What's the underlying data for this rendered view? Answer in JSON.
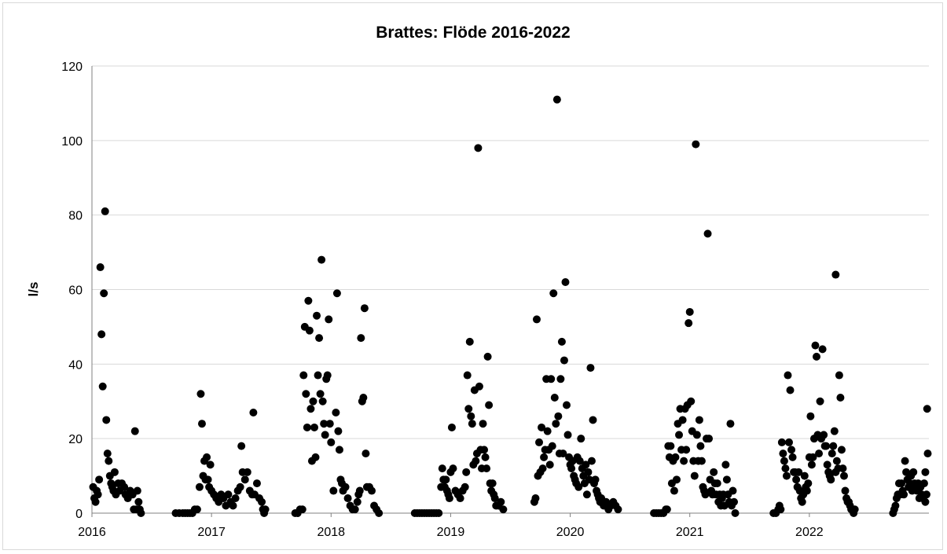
{
  "chart_data": {
    "type": "scatter",
    "title": "Brattes: Flöde 2016-2022",
    "xlabel": "",
    "ylabel": "l/s",
    "xlim": [
      2016.0,
      2023.0
    ],
    "ylim": [
      0,
      120
    ],
    "yticks": [
      0,
      20,
      40,
      60,
      80,
      100,
      120
    ],
    "xticks": [
      "2016",
      "2017",
      "2018",
      "2019",
      "2020",
      "2021",
      "2022"
    ],
    "grid": "horizontal",
    "legend": "none",
    "marker_color": "#000000",
    "points": [
      [
        2016.01,
        7
      ],
      [
        2016.02,
        4
      ],
      [
        2016.03,
        3
      ],
      [
        2016.04,
        6
      ],
      [
        2016.05,
        5
      ],
      [
        2016.06,
        9
      ],
      [
        2016.07,
        66
      ],
      [
        2016.08,
        48
      ],
      [
        2016.09,
        34
      ],
      [
        2016.1,
        59
      ],
      [
        2016.11,
        81
      ],
      [
        2016.12,
        25
      ],
      [
        2016.13,
        16
      ],
      [
        2016.14,
        14
      ],
      [
        2016.15,
        10
      ],
      [
        2016.16,
        8
      ],
      [
        2016.17,
        7
      ],
      [
        2016.18,
        6
      ],
      [
        2016.19,
        11
      ],
      [
        2016.2,
        5
      ],
      [
        2016.22,
        8
      ],
      [
        2016.23,
        6
      ],
      [
        2016.25,
        8
      ],
      [
        2016.27,
        7
      ],
      [
        2016.28,
        5
      ],
      [
        2016.3,
        4
      ],
      [
        2016.32,
        6
      ],
      [
        2016.34,
        5
      ],
      [
        2016.35,
        1
      ],
      [
        2016.36,
        22
      ],
      [
        2016.37,
        1
      ],
      [
        2016.38,
        6
      ],
      [
        2016.39,
        3
      ],
      [
        2016.4,
        1
      ],
      [
        2016.41,
        0
      ],
      [
        2016.7,
        0
      ],
      [
        2016.73,
        0
      ],
      [
        2016.76,
        0
      ],
      [
        2016.78,
        0
      ],
      [
        2016.8,
        0
      ],
      [
        2016.82,
        0
      ],
      [
        2016.84,
        0
      ],
      [
        2016.86,
        1
      ],
      [
        2016.88,
        1
      ],
      [
        2016.9,
        7
      ],
      [
        2016.91,
        32
      ],
      [
        2016.92,
        24
      ],
      [
        2016.93,
        10
      ],
      [
        2016.94,
        14
      ],
      [
        2016.95,
        9
      ],
      [
        2016.96,
        15
      ],
      [
        2016.97,
        9
      ],
      [
        2016.98,
        7
      ],
      [
        2016.99,
        13
      ],
      [
        2017.0,
        6
      ],
      [
        2017.02,
        5
      ],
      [
        2017.04,
        4
      ],
      [
        2017.06,
        3
      ],
      [
        2017.08,
        5
      ],
      [
        2017.1,
        4
      ],
      [
        2017.12,
        2
      ],
      [
        2017.14,
        5
      ],
      [
        2017.16,
        3
      ],
      [
        2017.18,
        2
      ],
      [
        2017.2,
        4
      ],
      [
        2017.22,
        6
      ],
      [
        2017.24,
        7
      ],
      [
        2017.25,
        18
      ],
      [
        2017.26,
        11
      ],
      [
        2017.28,
        9
      ],
      [
        2017.3,
        11
      ],
      [
        2017.32,
        6
      ],
      [
        2017.34,
        5
      ],
      [
        2017.35,
        27
      ],
      [
        2017.36,
        5
      ],
      [
        2017.38,
        8
      ],
      [
        2017.4,
        4
      ],
      [
        2017.42,
        3
      ],
      [
        2017.43,
        1
      ],
      [
        2017.44,
        0
      ],
      [
        2017.45,
        1
      ],
      [
        2017.7,
        0
      ],
      [
        2017.72,
        0
      ],
      [
        2017.74,
        1
      ],
      [
        2017.76,
        1
      ],
      [
        2017.77,
        37
      ],
      [
        2017.78,
        50
      ],
      [
        2017.79,
        32
      ],
      [
        2017.8,
        23
      ],
      [
        2017.81,
        57
      ],
      [
        2017.82,
        49
      ],
      [
        2017.83,
        28
      ],
      [
        2017.84,
        14
      ],
      [
        2017.85,
        30
      ],
      [
        2017.86,
        23
      ],
      [
        2017.87,
        15
      ],
      [
        2017.88,
        53
      ],
      [
        2017.89,
        37
      ],
      [
        2017.9,
        47
      ],
      [
        2017.91,
        32
      ],
      [
        2017.92,
        68
      ],
      [
        2017.93,
        30
      ],
      [
        2017.94,
        24
      ],
      [
        2017.95,
        21
      ],
      [
        2017.96,
        36
      ],
      [
        2017.97,
        37
      ],
      [
        2017.98,
        52
      ],
      [
        2017.99,
        24
      ],
      [
        2018.0,
        19
      ],
      [
        2018.02,
        6
      ],
      [
        2018.04,
        27
      ],
      [
        2018.05,
        59
      ],
      [
        2018.06,
        22
      ],
      [
        2018.07,
        17
      ],
      [
        2018.08,
        9
      ],
      [
        2018.09,
        8
      ],
      [
        2018.1,
        6
      ],
      [
        2018.12,
        7
      ],
      [
        2018.14,
        4
      ],
      [
        2018.16,
        2
      ],
      [
        2018.18,
        1
      ],
      [
        2018.2,
        1
      ],
      [
        2018.22,
        3
      ],
      [
        2018.23,
        5
      ],
      [
        2018.24,
        6
      ],
      [
        2018.25,
        47
      ],
      [
        2018.26,
        30
      ],
      [
        2018.27,
        31
      ],
      [
        2018.28,
        55
      ],
      [
        2018.29,
        16
      ],
      [
        2018.3,
        7
      ],
      [
        2018.32,
        7
      ],
      [
        2018.34,
        6
      ],
      [
        2018.36,
        2
      ],
      [
        2018.38,
        1
      ],
      [
        2018.4,
        0
      ],
      [
        2018.7,
        0
      ],
      [
        2018.72,
        0
      ],
      [
        2018.74,
        0
      ],
      [
        2018.76,
        0
      ],
      [
        2018.78,
        0
      ],
      [
        2018.8,
        0
      ],
      [
        2018.82,
        0
      ],
      [
        2018.84,
        0
      ],
      [
        2018.86,
        0
      ],
      [
        2018.88,
        0
      ],
      [
        2018.9,
        0
      ],
      [
        2018.92,
        7
      ],
      [
        2018.93,
        12
      ],
      [
        2018.94,
        9
      ],
      [
        2018.95,
        7
      ],
      [
        2018.96,
        9
      ],
      [
        2018.97,
        6
      ],
      [
        2018.98,
        5
      ],
      [
        2018.99,
        4
      ],
      [
        2019.0,
        11
      ],
      [
        2019.01,
        23
      ],
      [
        2019.02,
        12
      ],
      [
        2019.04,
        6
      ],
      [
        2019.06,
        5
      ],
      [
        2019.08,
        4
      ],
      [
        2019.1,
        6
      ],
      [
        2019.12,
        7
      ],
      [
        2019.13,
        11
      ],
      [
        2019.14,
        37
      ],
      [
        2019.15,
        28
      ],
      [
        2019.16,
        46
      ],
      [
        2019.17,
        26
      ],
      [
        2019.18,
        24
      ],
      [
        2019.19,
        13
      ],
      [
        2019.2,
        33
      ],
      [
        2019.21,
        14
      ],
      [
        2019.22,
        16
      ],
      [
        2019.23,
        98
      ],
      [
        2019.24,
        34
      ],
      [
        2019.25,
        17
      ],
      [
        2019.26,
        12
      ],
      [
        2019.27,
        24
      ],
      [
        2019.28,
        17
      ],
      [
        2019.29,
        15
      ],
      [
        2019.3,
        12
      ],
      [
        2019.31,
        42
      ],
      [
        2019.32,
        29
      ],
      [
        2019.33,
        8
      ],
      [
        2019.34,
        6
      ],
      [
        2019.35,
        8
      ],
      [
        2019.36,
        5
      ],
      [
        2019.37,
        4
      ],
      [
        2019.38,
        2
      ],
      [
        2019.4,
        2
      ],
      [
        2019.42,
        3
      ],
      [
        2019.44,
        1
      ],
      [
        2019.7,
        3
      ],
      [
        2019.71,
        4
      ],
      [
        2019.72,
        52
      ],
      [
        2019.73,
        10
      ],
      [
        2019.74,
        19
      ],
      [
        2019.75,
        11
      ],
      [
        2019.76,
        23
      ],
      [
        2019.77,
        12
      ],
      [
        2019.78,
        15
      ],
      [
        2019.79,
        17
      ],
      [
        2019.8,
        36
      ],
      [
        2019.81,
        22
      ],
      [
        2019.82,
        17
      ],
      [
        2019.83,
        13
      ],
      [
        2019.84,
        36
      ],
      [
        2019.85,
        18
      ],
      [
        2019.86,
        59
      ],
      [
        2019.87,
        31
      ],
      [
        2019.88,
        24
      ],
      [
        2019.89,
        111
      ],
      [
        2019.9,
        26
      ],
      [
        2019.91,
        16
      ],
      [
        2019.92,
        36
      ],
      [
        2019.93,
        46
      ],
      [
        2019.94,
        16
      ],
      [
        2019.95,
        41
      ],
      [
        2019.96,
        62
      ],
      [
        2019.97,
        29
      ],
      [
        2019.98,
        21
      ],
      [
        2019.99,
        15
      ],
      [
        2020.0,
        13
      ],
      [
        2020.01,
        12
      ],
      [
        2020.02,
        14
      ],
      [
        2020.03,
        10
      ],
      [
        2020.04,
        9
      ],
      [
        2020.05,
        8
      ],
      [
        2020.06,
        15
      ],
      [
        2020.07,
        7
      ],
      [
        2020.08,
        14
      ],
      [
        2020.09,
        20
      ],
      [
        2020.1,
        12
      ],
      [
        2020.11,
        10
      ],
      [
        2020.12,
        8
      ],
      [
        2020.13,
        13
      ],
      [
        2020.14,
        5
      ],
      [
        2020.15,
        11
      ],
      [
        2020.16,
        9
      ],
      [
        2020.17,
        39
      ],
      [
        2020.18,
        14
      ],
      [
        2020.19,
        25
      ],
      [
        2020.2,
        8
      ],
      [
        2020.21,
        9
      ],
      [
        2020.22,
        6
      ],
      [
        2020.23,
        5
      ],
      [
        2020.24,
        4
      ],
      [
        2020.25,
        3
      ],
      [
        2020.26,
        4
      ],
      [
        2020.27,
        3
      ],
      [
        2020.28,
        2
      ],
      [
        2020.3,
        3
      ],
      [
        2020.32,
        1
      ],
      [
        2020.34,
        2
      ],
      [
        2020.36,
        3
      ],
      [
        2020.38,
        2
      ],
      [
        2020.4,
        1
      ],
      [
        2020.7,
        0
      ],
      [
        2020.72,
        0
      ],
      [
        2020.74,
        0
      ],
      [
        2020.76,
        0
      ],
      [
        2020.78,
        0
      ],
      [
        2020.8,
        1
      ],
      [
        2020.81,
        1
      ],
      [
        2020.82,
        18
      ],
      [
        2020.83,
        15
      ],
      [
        2020.84,
        18
      ],
      [
        2020.85,
        8
      ],
      [
        2020.86,
        14
      ],
      [
        2020.87,
        6
      ],
      [
        2020.88,
        15
      ],
      [
        2020.89,
        9
      ],
      [
        2020.9,
        24
      ],
      [
        2020.91,
        21
      ],
      [
        2020.92,
        28
      ],
      [
        2020.93,
        17
      ],
      [
        2020.94,
        25
      ],
      [
        2020.95,
        14
      ],
      [
        2020.96,
        28
      ],
      [
        2020.97,
        17
      ],
      [
        2020.98,
        29
      ],
      [
        2020.99,
        51
      ],
      [
        2021.0,
        54
      ],
      [
        2021.01,
        30
      ],
      [
        2021.02,
        22
      ],
      [
        2021.03,
        14
      ],
      [
        2021.04,
        10
      ],
      [
        2021.05,
        99
      ],
      [
        2021.06,
        21
      ],
      [
        2021.07,
        14
      ],
      [
        2021.08,
        25
      ],
      [
        2021.09,
        18
      ],
      [
        2021.1,
        14
      ],
      [
        2021.11,
        7
      ],
      [
        2021.12,
        6
      ],
      [
        2021.13,
        5
      ],
      [
        2021.14,
        20
      ],
      [
        2021.15,
        75
      ],
      [
        2021.16,
        20
      ],
      [
        2021.17,
        9
      ],
      [
        2021.18,
        6
      ],
      [
        2021.19,
        5
      ],
      [
        2021.2,
        11
      ],
      [
        2021.21,
        8
      ],
      [
        2021.22,
        5
      ],
      [
        2021.23,
        8
      ],
      [
        2021.24,
        3
      ],
      [
        2021.25,
        5
      ],
      [
        2021.26,
        2
      ],
      [
        2021.27,
        4
      ],
      [
        2021.28,
        5
      ],
      [
        2021.29,
        2
      ],
      [
        2021.3,
        13
      ],
      [
        2021.31,
        9
      ],
      [
        2021.32,
        5
      ],
      [
        2021.33,
        3
      ],
      [
        2021.34,
        24
      ],
      [
        2021.35,
        2
      ],
      [
        2021.36,
        6
      ],
      [
        2021.37,
        3
      ],
      [
        2021.38,
        0
      ],
      [
        2021.7,
        0
      ],
      [
        2021.72,
        0
      ],
      [
        2021.74,
        1
      ],
      [
        2021.75,
        2
      ],
      [
        2021.76,
        1
      ],
      [
        2021.77,
        19
      ],
      [
        2021.78,
        16
      ],
      [
        2021.79,
        14
      ],
      [
        2021.8,
        12
      ],
      [
        2021.81,
        10
      ],
      [
        2021.82,
        37
      ],
      [
        2021.83,
        19
      ],
      [
        2021.84,
        33
      ],
      [
        2021.85,
        17
      ],
      [
        2021.86,
        15
      ],
      [
        2021.87,
        11
      ],
      [
        2021.88,
        11
      ],
      [
        2021.89,
        9
      ],
      [
        2021.9,
        7
      ],
      [
        2021.91,
        11
      ],
      [
        2021.92,
        6
      ],
      [
        2021.93,
        4
      ],
      [
        2021.94,
        3
      ],
      [
        2021.95,
        5
      ],
      [
        2021.96,
        10
      ],
      [
        2021.97,
        7
      ],
      [
        2021.98,
        6
      ],
      [
        2021.99,
        8
      ],
      [
        2022.0,
        15
      ],
      [
        2022.01,
        26
      ],
      [
        2022.02,
        13
      ],
      [
        2022.03,
        15
      ],
      [
        2022.04,
        20
      ],
      [
        2022.05,
        45
      ],
      [
        2022.06,
        42
      ],
      [
        2022.07,
        21
      ],
      [
        2022.08,
        16
      ],
      [
        2022.09,
        30
      ],
      [
        2022.1,
        20
      ],
      [
        2022.11,
        44
      ],
      [
        2022.12,
        21
      ],
      [
        2022.13,
        18
      ],
      [
        2022.14,
        18
      ],
      [
        2022.15,
        13
      ],
      [
        2022.16,
        11
      ],
      [
        2022.17,
        10
      ],
      [
        2022.18,
        9
      ],
      [
        2022.19,
        16
      ],
      [
        2022.2,
        18
      ],
      [
        2022.21,
        22
      ],
      [
        2022.22,
        11
      ],
      [
        2022.23,
        14
      ],
      [
        2022.24,
        12
      ],
      [
        2022.25,
        37
      ],
      [
        2022.26,
        31
      ],
      [
        2022.27,
        17
      ],
      [
        2022.28,
        12
      ],
      [
        2022.29,
        10
      ],
      [
        2022.3,
        6
      ],
      [
        2022.31,
        4
      ],
      [
        2022.32,
        3
      ],
      [
        2022.33,
        3
      ],
      [
        2022.34,
        2
      ],
      [
        2022.35,
        1
      ],
      [
        2022.36,
        1
      ],
      [
        2022.37,
        0
      ],
      [
        2022.38,
        1
      ],
      [
        2022.22,
        64
      ],
      [
        2022.7,
        0
      ],
      [
        2022.71,
        1
      ],
      [
        2022.72,
        2
      ],
      [
        2022.73,
        4
      ],
      [
        2022.74,
        5
      ],
      [
        2022.75,
        8
      ],
      [
        2022.76,
        5
      ],
      [
        2022.77,
        8
      ],
      [
        2022.78,
        6
      ],
      [
        2022.79,
        5
      ],
      [
        2022.8,
        14
      ],
      [
        2022.81,
        11
      ],
      [
        2022.82,
        9
      ],
      [
        2022.83,
        7
      ],
      [
        2022.84,
        8
      ],
      [
        2022.85,
        10
      ],
      [
        2022.86,
        6
      ],
      [
        2022.87,
        11
      ],
      [
        2022.88,
        8
      ],
      [
        2022.89,
        7
      ],
      [
        2022.9,
        6
      ],
      [
        2022.91,
        8
      ],
      [
        2022.92,
        4
      ],
      [
        2022.93,
        7
      ],
      [
        2022.94,
        5
      ],
      [
        2022.95,
        4
      ],
      [
        2022.96,
        8
      ],
      [
        2022.97,
        11
      ],
      [
        2022.98,
        5
      ],
      [
        2022.99,
        16
      ],
      [
        2022.985,
        28
      ],
      [
        2022.97,
        3
      ]
    ]
  }
}
